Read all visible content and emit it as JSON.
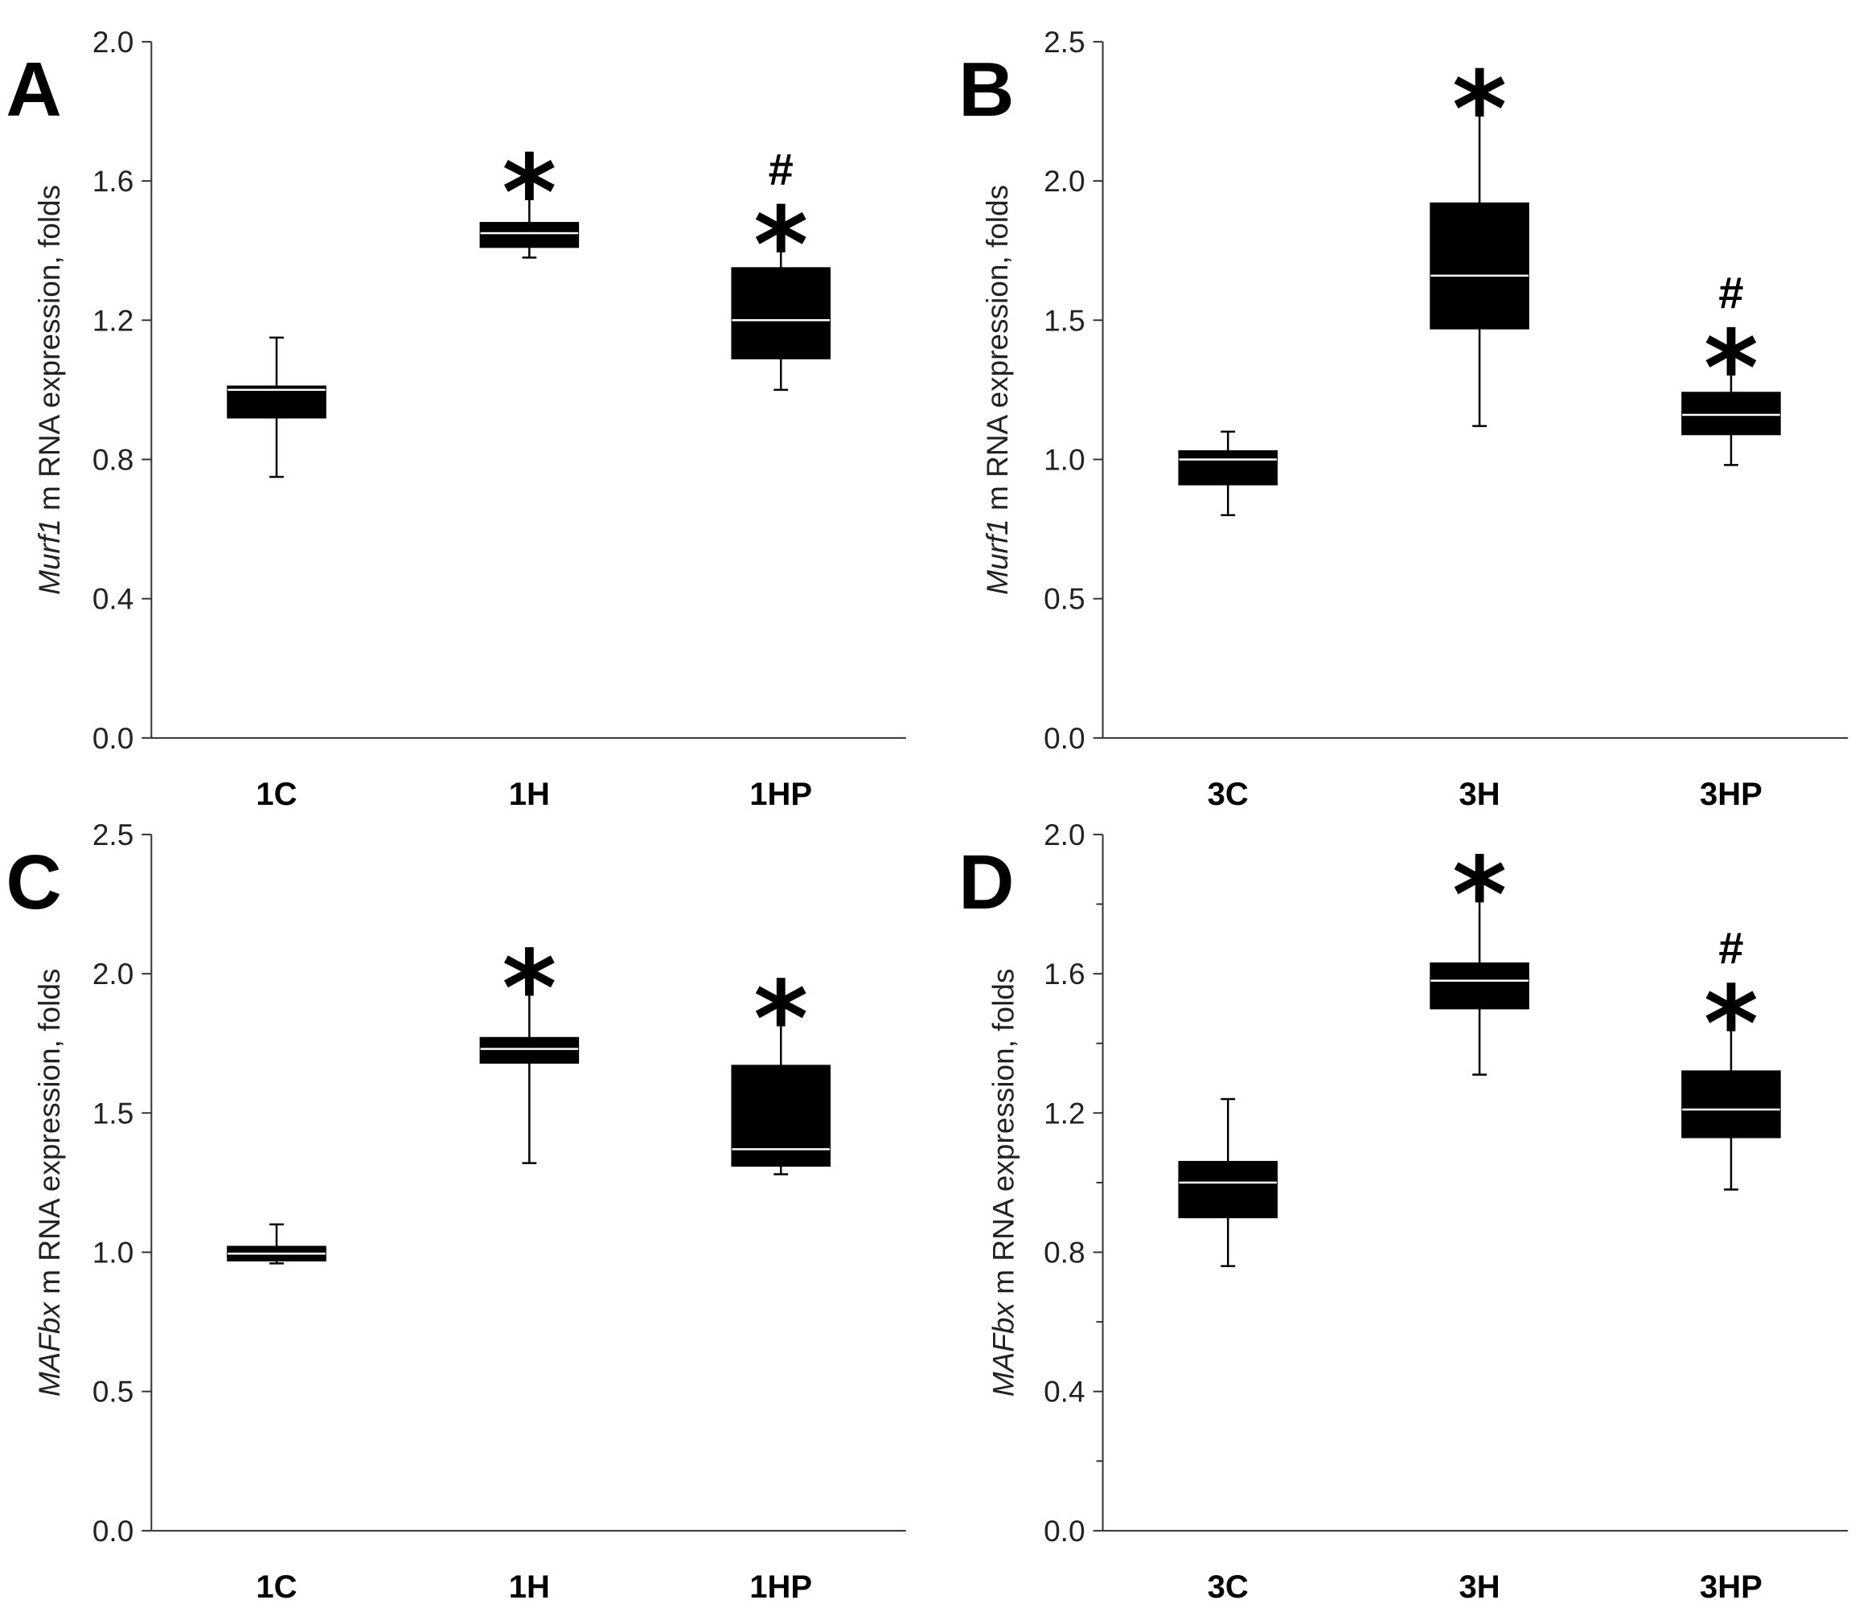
{
  "chart_data": [
    {
      "panel": "A",
      "type": "box",
      "ylabel_italic": "Murf1",
      "ylabel_rest": " m RNA expression, folds",
      "ylim": [
        0,
        2.0
      ],
      "yticks": [
        "0.0",
        "0.4",
        "0.8",
        "1.2",
        "1.6",
        "2.0"
      ],
      "yminor": false,
      "categories": [
        "1C",
        "1H",
        "1HP"
      ],
      "boxes": [
        {
          "min": 0.75,
          "q1": 0.92,
          "median": 1.0,
          "q3": 1.01,
          "max": 1.15,
          "sig": ""
        },
        {
          "min": 1.38,
          "q1": 1.41,
          "median": 1.45,
          "q3": 1.48,
          "max": 1.6,
          "sig": "*"
        },
        {
          "min": 1.0,
          "q1": 1.09,
          "median": 1.2,
          "q3": 1.35,
          "max": 1.45,
          "sig": "*",
          "hash": "#"
        }
      ]
    },
    {
      "panel": "B",
      "type": "box",
      "ylabel_italic": "Murf1",
      "ylabel_rest": " m RNA expression, folds",
      "ylim": [
        0,
        2.5
      ],
      "yticks": [
        "0.0",
        "0.5",
        "1.0",
        "1.5",
        "2.0",
        "2.5"
      ],
      "yminor": false,
      "categories": [
        "3C",
        "3H",
        "3HP"
      ],
      "boxes": [
        {
          "min": 0.8,
          "q1": 0.91,
          "median": 1.0,
          "q3": 1.03,
          "max": 1.1,
          "sig": ""
        },
        {
          "min": 1.12,
          "q1": 1.47,
          "median": 1.66,
          "q3": 1.92,
          "max": 2.3,
          "sig": "*"
        },
        {
          "min": 0.98,
          "q1": 1.09,
          "median": 1.16,
          "q3": 1.24,
          "max": 1.37,
          "sig": "*",
          "hash": "#"
        }
      ]
    },
    {
      "panel": "C",
      "type": "box",
      "ylabel_italic": "MAFbx",
      "ylabel_rest": " m RNA expression, folds",
      "ylim": [
        0,
        2.5
      ],
      "yticks": [
        "0.0",
        "0.5",
        "1.0",
        "1.5",
        "2.0",
        "2.5"
      ],
      "yminor": false,
      "categories": [
        "1C",
        "1H",
        "1HP"
      ],
      "boxes": [
        {
          "min": 0.96,
          "q1": 0.97,
          "median": 0.995,
          "q3": 1.02,
          "max": 1.1,
          "sig": ""
        },
        {
          "min": 1.32,
          "q1": 1.68,
          "median": 1.73,
          "q3": 1.77,
          "max": 1.99,
          "sig": "*"
        },
        {
          "min": 1.28,
          "q1": 1.31,
          "median": 1.37,
          "q3": 1.67,
          "max": 1.88,
          "sig": "*"
        }
      ]
    },
    {
      "panel": "D",
      "type": "box",
      "ylabel_italic": "MAFbx",
      "ylabel_rest": " m RNA expression, folds",
      "ylim": [
        0,
        2.0
      ],
      "yticks": [
        "0.0",
        "0.4",
        "0.8",
        "1.2",
        "1.6",
        "2.0"
      ],
      "yminor": true,
      "categories": [
        "3C",
        "3H",
        "3HP"
      ],
      "boxes": [
        {
          "min": 0.76,
          "q1": 0.9,
          "median": 1.0,
          "q3": 1.06,
          "max": 1.24,
          "sig": ""
        },
        {
          "min": 1.31,
          "q1": 1.5,
          "median": 1.58,
          "q3": 1.63,
          "max": 1.86,
          "sig": "*"
        },
        {
          "min": 0.98,
          "q1": 1.13,
          "median": 1.21,
          "q3": 1.32,
          "max": 1.49,
          "sig": "*",
          "hash": "#"
        }
      ]
    }
  ]
}
